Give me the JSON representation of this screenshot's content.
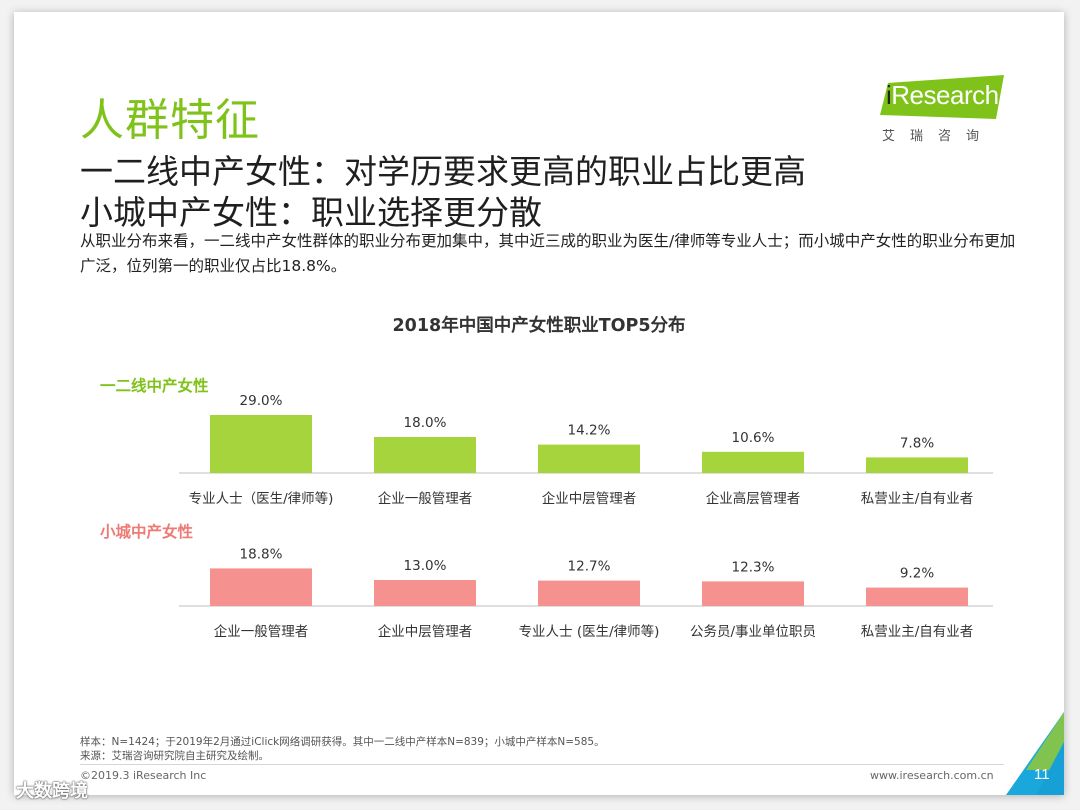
{
  "section_title": "人群特征",
  "headline": {
    "line1": "一二线中产女性：对学历要求更高的职业占比更高",
    "line2": "小城中产女性：职业选择更分散"
  },
  "intro": "从职业分布来看，一二线中产女性群体的职业分布更加集中，其中近三成的职业为医生/律师等专业人士；而小城中产女性的职业分布更加广泛，位列第一的职业仅占比18.8%。",
  "logo": {
    "prefix": "i",
    "word": "Research",
    "cn": "艾瑞咨询",
    "color": "#7fc21a"
  },
  "chart_data": {
    "type": "bar",
    "title": "2018年中国中产女性职业TOP5分布",
    "ylim": [
      0,
      30
    ],
    "grid": false,
    "series": [
      {
        "name": "一二线中产女性",
        "color": "#a6d43c",
        "label_color": "#7fc21a",
        "categories": [
          "专业人士（医生/律师等)",
          "企业一般管理者",
          "企业中层管理者",
          "企业高层管理者",
          "私营业主/自有业者"
        ],
        "values": [
          29.0,
          18.0,
          14.2,
          10.6,
          7.8
        ],
        "value_labels": [
          "29.0%",
          "18.0%",
          "14.2%",
          "10.6%",
          "7.8%"
        ]
      },
      {
        "name": "小城中产女性",
        "color": "#f5918f",
        "label_color": "#ee7a76",
        "categories": [
          "企业一般管理者",
          "企业中层管理者",
          "专业人士 (医生/律师等)",
          "公务员/事业单位职员",
          "私营业主/自有业者"
        ],
        "values": [
          18.8,
          13.0,
          12.7,
          12.3,
          9.2
        ],
        "value_labels": [
          "18.8%",
          "13.0%",
          "12.7%",
          "12.3%",
          "9.2%"
        ]
      }
    ]
  },
  "footnotes": {
    "sample": "样本：N=1424；于2019年2月通过iClick网络调研获得。其中一二线中产样本N=839；小城中产样本N=585。",
    "source": "来源：艾瑞咨询研究院自主研究及绘制。"
  },
  "footer": {
    "copyright": "©2019.3 iResearch Inc",
    "site": "www.iresearch.com.cn",
    "page": "11"
  },
  "watermark": "大数跨境",
  "colors": {
    "accent_green": "#7fc21a",
    "corner_blue": "#1aa7dc",
    "corner_green": "#8cc63f"
  }
}
